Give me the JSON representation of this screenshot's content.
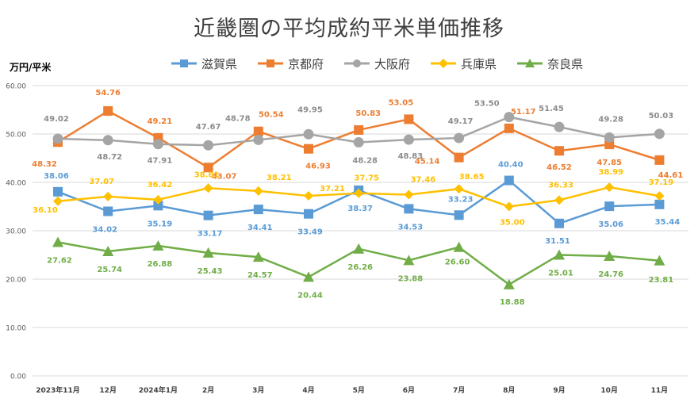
{
  "chart_data": {
    "type": "line",
    "title": "近畿圏の平均成約平米単価推移",
    "ylabel": "万円/平米",
    "xlabel": "",
    "ylim": [
      0,
      60
    ],
    "yticks": [
      "0.00",
      "10.00",
      "20.00",
      "30.00",
      "40.00",
      "50.00",
      "60.00"
    ],
    "grid": true,
    "legend_position": "top",
    "categories": [
      "2023年11月",
      "12月",
      "2024年1月",
      "2月",
      "3月",
      "4月",
      "5月",
      "6月",
      "7月",
      "8月",
      "9月",
      "10月",
      "11月"
    ],
    "series": [
      {
        "name": "滋賀県",
        "color": "#5B9BD5",
        "marker": "square",
        "values": [
          38.06,
          34.02,
          35.19,
          33.17,
          34.41,
          33.49,
          38.37,
          34.53,
          33.23,
          40.4,
          31.51,
          35.06,
          35.44
        ],
        "labels": [
          "38.06",
          "34.02",
          "35.19",
          "33.17",
          "34.41",
          "33.49",
          "38.37",
          "34.53",
          "33.23",
          "40.40",
          "31.51",
          "35.06",
          "35.44"
        ]
      },
      {
        "name": "京都府",
        "color": "#ED7D31",
        "marker": "square",
        "values": [
          48.32,
          54.76,
          49.21,
          43.07,
          50.54,
          46.93,
          50.83,
          53.05,
          45.14,
          51.17,
          46.52,
          47.85,
          44.61
        ],
        "labels": [
          "48.32",
          "54.76",
          "49.21",
          "43.07",
          "50.54",
          "46.93",
          "50.83",
          "53.05",
          "45.14",
          "51.17",
          "46.52",
          "47.85",
          "44.61"
        ]
      },
      {
        "name": "大阪府",
        "color": "#A5A5A5",
        "marker": "circle",
        "values": [
          49.02,
          48.72,
          47.91,
          47.67,
          48.78,
          49.95,
          48.28,
          48.83,
          49.17,
          53.5,
          51.45,
          49.28,
          50.03
        ],
        "labels": [
          "49.02",
          "48.72",
          "47.91",
          "47.67",
          "48.78",
          "49.95",
          "48.28",
          "48.83",
          "49.17",
          "53.50",
          "51.45",
          "49.28",
          "50.03"
        ]
      },
      {
        "name": "兵庫県",
        "color": "#FFC000",
        "marker": "diamond",
        "values": [
          36.1,
          37.07,
          36.42,
          38.81,
          38.21,
          37.21,
          37.75,
          37.46,
          38.65,
          35.0,
          36.33,
          38.99,
          37.19
        ],
        "labels": [
          "36.10",
          "37.07",
          "36.42",
          "38.81",
          "38.21",
          "37.21",
          "37.75",
          "37.46",
          "38.65",
          "35.00",
          "36.33",
          "38.99",
          "37.19"
        ]
      },
      {
        "name": "奈良県",
        "color": "#70AD47",
        "marker": "triangle",
        "values": [
          27.62,
          25.74,
          26.88,
          25.43,
          24.57,
          20.44,
          26.26,
          23.88,
          26.6,
          18.88,
          25.01,
          24.76,
          23.81
        ],
        "labels": [
          "27.62",
          "25.74",
          "26.88",
          "25.43",
          "24.57",
          "20.44",
          "26.26",
          "23.88",
          "26.60",
          "18.88",
          "25.01",
          "24.76",
          "23.81"
        ]
      }
    ]
  }
}
